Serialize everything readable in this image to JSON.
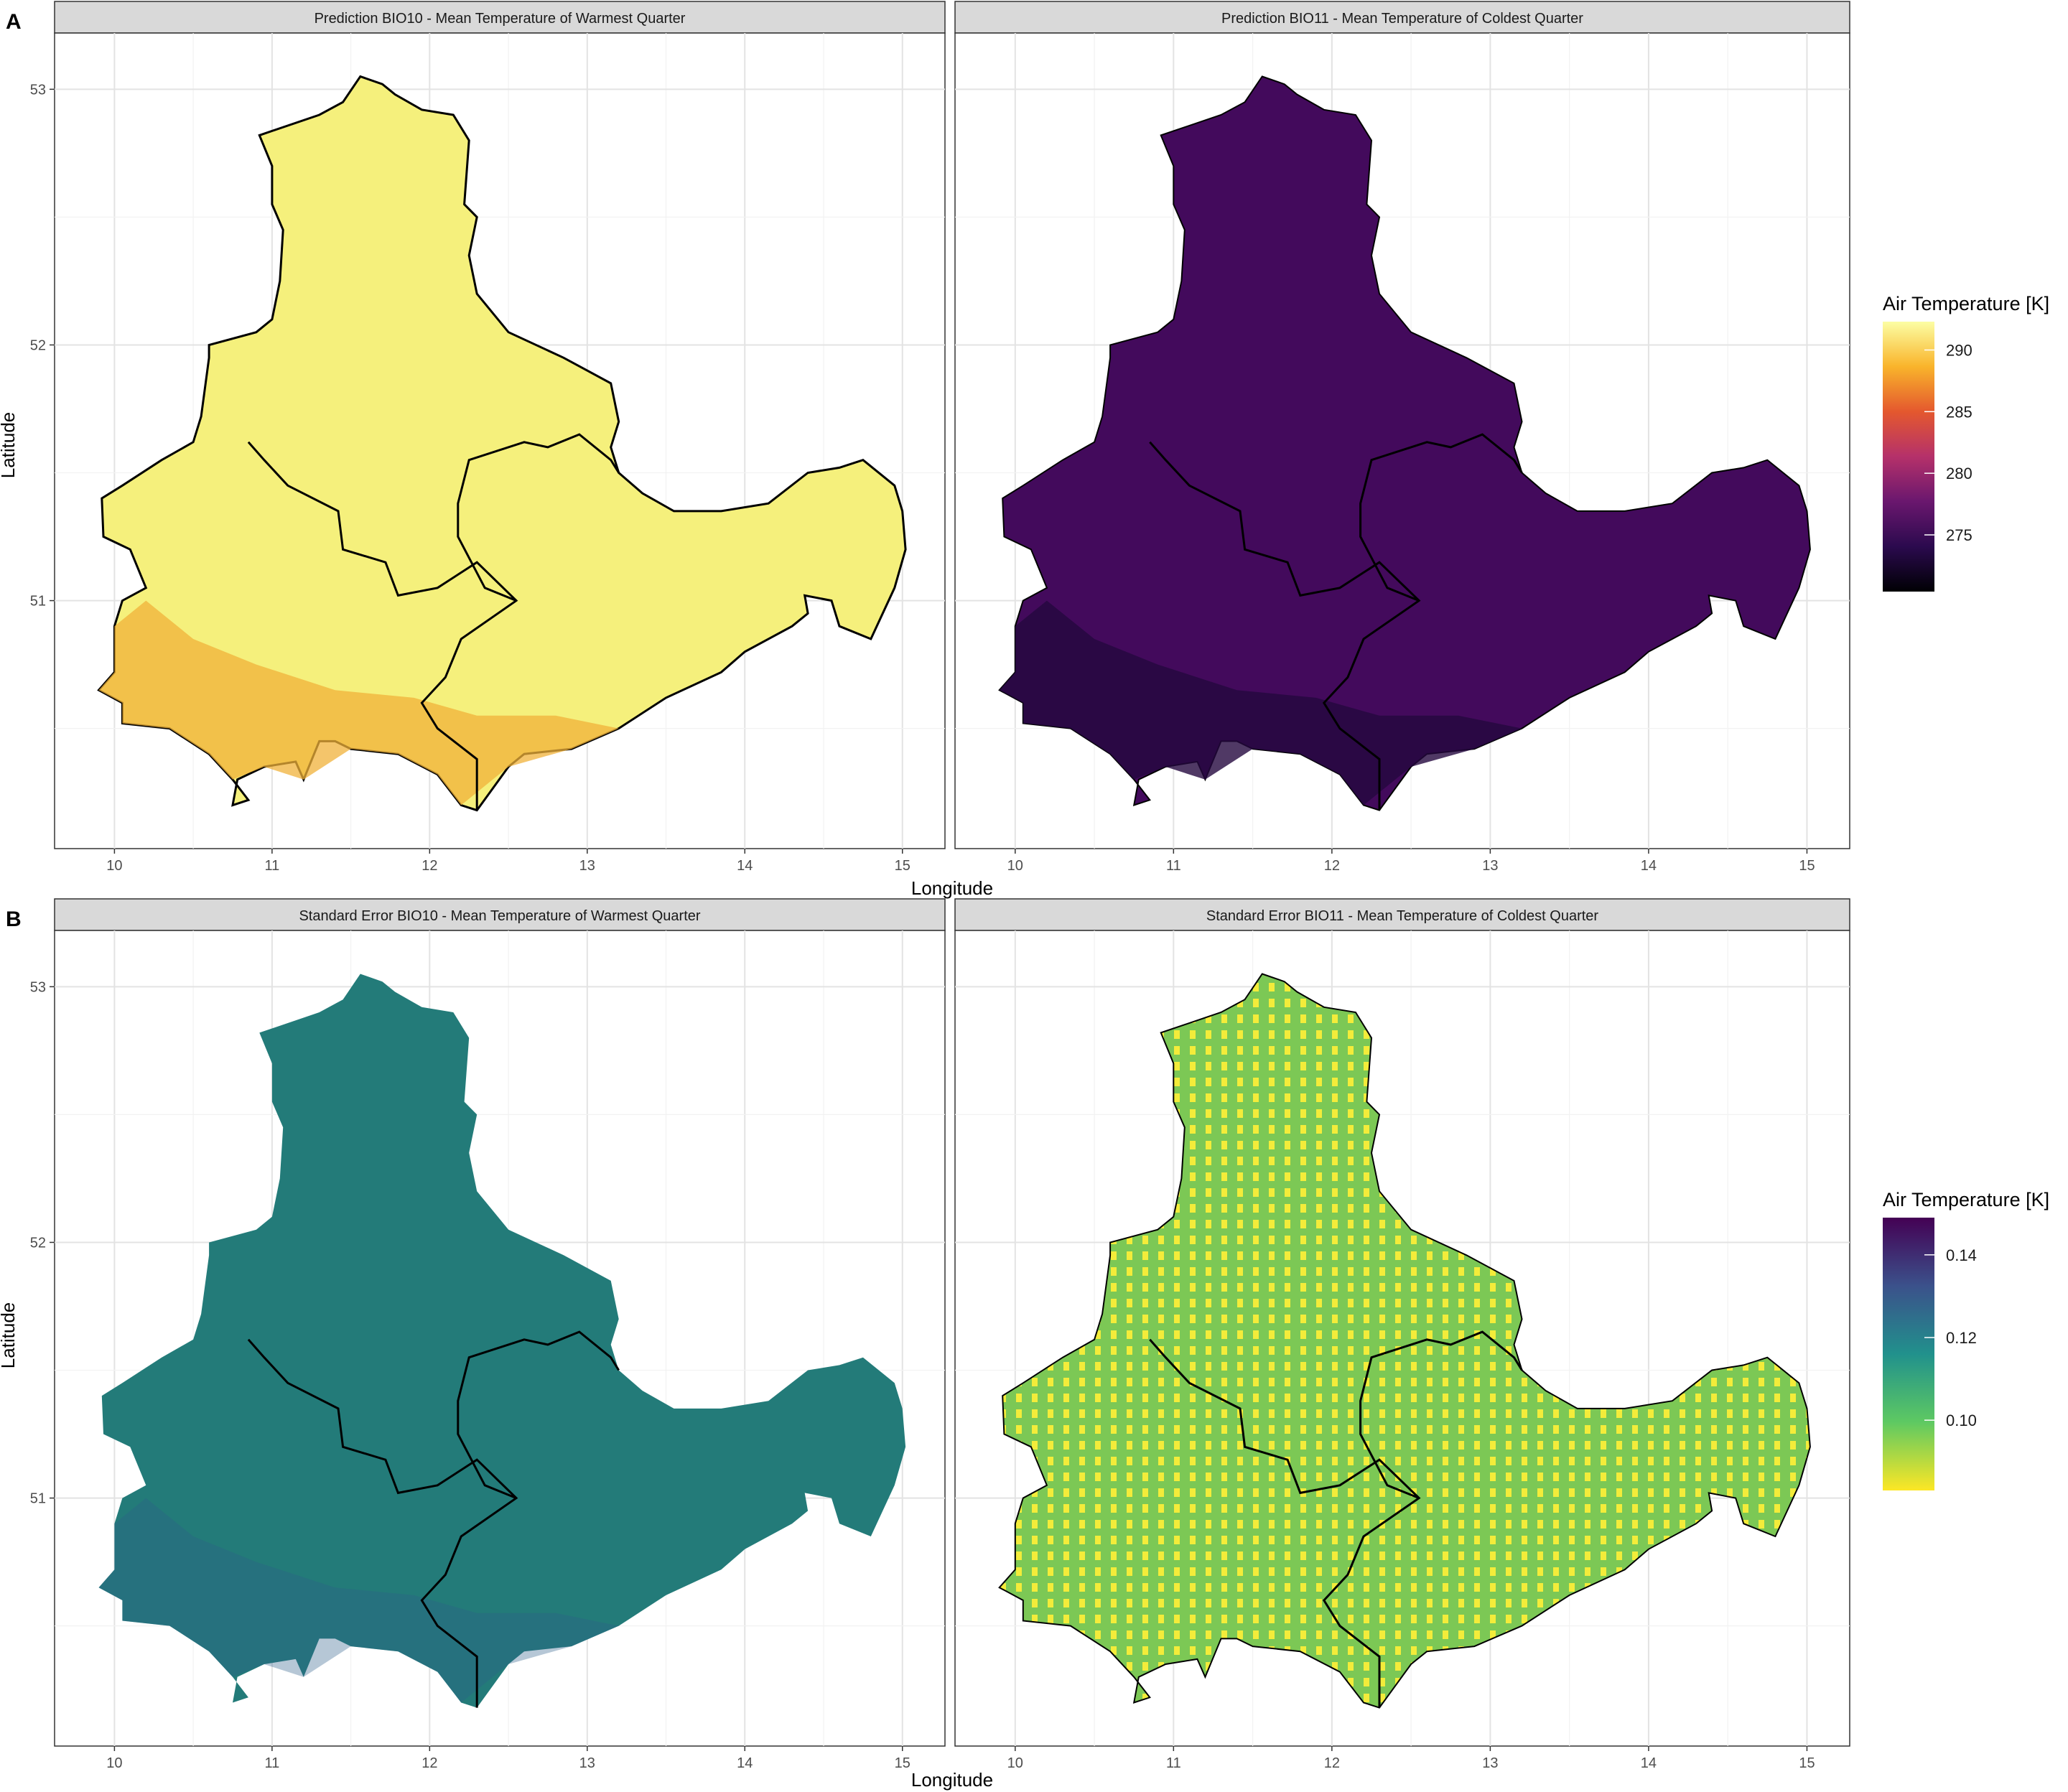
{
  "figure": {
    "rows": [
      {
        "label": "A",
        "axis_x_title": "Longitude",
        "axis_y_title": "Latitude",
        "legend": {
          "title": "Air Temperature [K]",
          "ticks": [
            "290",
            "285",
            "280",
            "275"
          ],
          "colors": [
            "#fcfea4",
            "#f9b42b",
            "#e4582e",
            "#b5316a",
            "#6a176e",
            "#2b0a4e",
            "#000004"
          ]
        },
        "panels": [
          {
            "title": "Prediction BIO10 - Mean Temperature of Warmest Quarter",
            "fill": "#f5f07c",
            "warm_fill": "#f0b23a",
            "border": "#000000"
          },
          {
            "title": "Prediction BIO11 - Mean Temperature of Coldest Quarter",
            "fill": "#430a5c",
            "warm_fill": "#24083e",
            "border": "#000000"
          }
        ]
      },
      {
        "label": "B",
        "axis_x_title": "Longitude",
        "axis_y_title": "Latitude",
        "legend": {
          "title": "Air Temperature [K]",
          "ticks": [
            "0.14",
            "0.12",
            "0.10"
          ],
          "colors": [
            "#440154",
            "#3b518b",
            "#21918c",
            "#5ec962",
            "#fde725"
          ]
        },
        "panels": [
          {
            "title": "Standard Error BIO10 - Mean Temperature of Warmest Quarter",
            "fill": "#237b79",
            "warm_fill": "#2d5e8a",
            "border": "#000000"
          },
          {
            "title": "Standard Error BIO11 - Mean Temperature of Coldest Quarter",
            "fill": "#8fd14f",
            "warm_fill": "#e8e419",
            "border": "#000000"
          }
        ]
      }
    ],
    "x_ticks": [
      "10",
      "11",
      "12",
      "13",
      "14",
      "15"
    ],
    "y_ticks": [
      "53",
      "52",
      "51"
    ],
    "x_range": [
      9.62,
      15.27
    ],
    "y_range": [
      50.03,
      53.22
    ]
  }
}
